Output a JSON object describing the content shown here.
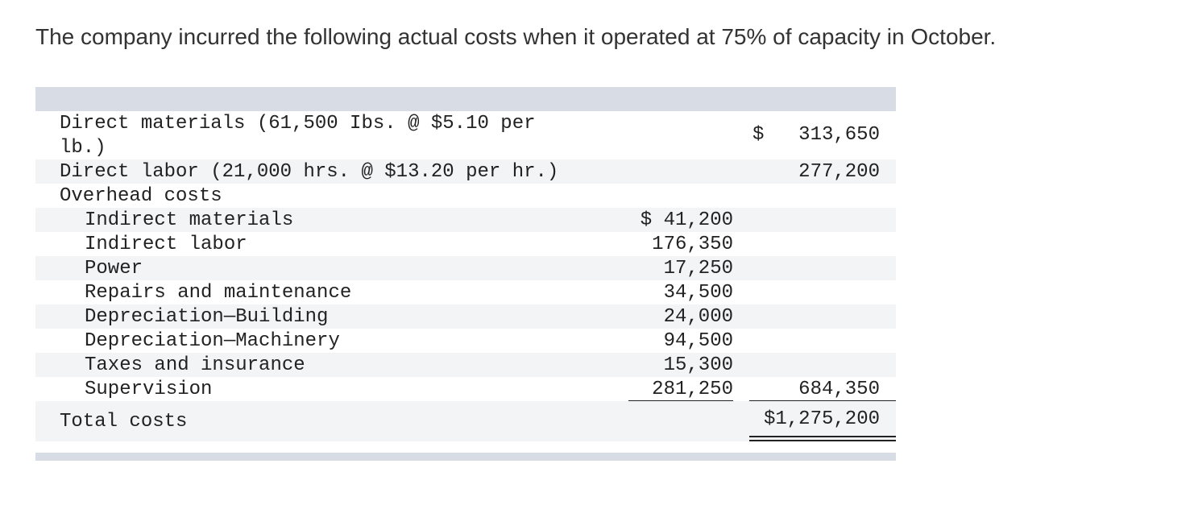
{
  "intro": "The company incurred the following actual costs when it operated at 75% of capacity in October.",
  "rows": {
    "direct_materials": {
      "label_line1": "Direct materials (61,500 Ibs. @ $5.10 per",
      "label_line2": "lb.)",
      "dollar_sign": "$",
      "amount": "313,650"
    },
    "direct_labor": {
      "label": "Direct labor (21,000 hrs. @ $13.20 per hr.)",
      "amount": "277,200"
    },
    "overhead_heading": "Overhead costs",
    "overhead_items": [
      {
        "label": "Indirect materials",
        "amount": "$ 41,200"
      },
      {
        "label": "Indirect labor",
        "amount": "176,350"
      },
      {
        "label": "Power",
        "amount": "17,250"
      },
      {
        "label": "Repairs and maintenance",
        "amount": "34,500"
      },
      {
        "label": "Depreciation—Building",
        "amount": "24,000"
      },
      {
        "label": "Depreciation—Machinery",
        "amount": "94,500"
      },
      {
        "label": "Taxes and insurance",
        "amount": "15,300"
      },
      {
        "label": "Supervision",
        "amount": "281,250"
      }
    ],
    "overhead_total": "684,350",
    "total": {
      "label": "Total costs",
      "amount": "$1,275,200"
    }
  }
}
